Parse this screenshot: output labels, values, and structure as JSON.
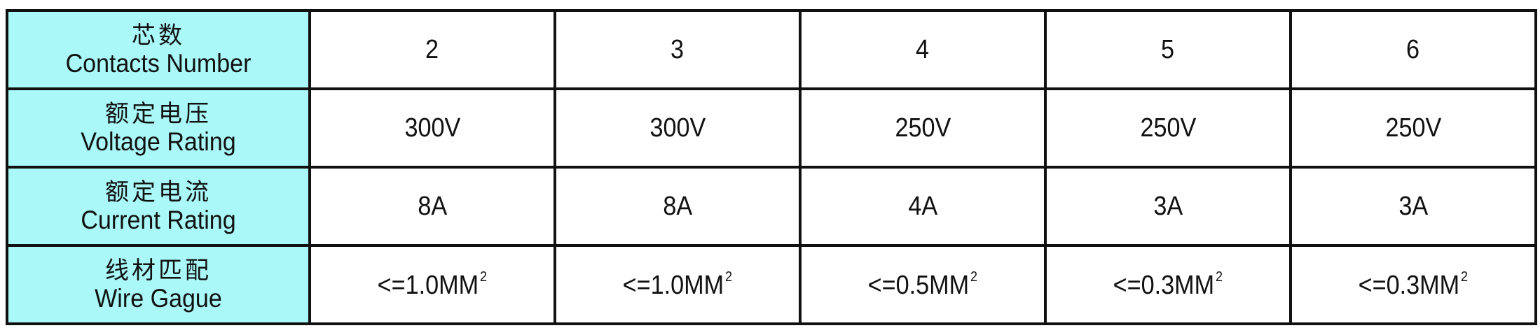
{
  "table": {
    "header_color": "#aaf8f8",
    "rows": [
      {
        "label_zh": "芯数",
        "label_en": "Contacts Number",
        "values": [
          "2",
          "3",
          "4",
          "5",
          "6"
        ]
      },
      {
        "label_zh": "额定电压",
        "label_en": "Voltage Rating",
        "values": [
          "300V",
          "300V",
          "250V",
          "250V",
          "250V"
        ]
      },
      {
        "label_zh": "额定电流",
        "label_en": "Current Rating",
        "values": [
          "8A",
          "8A",
          "4A",
          "3A",
          "3A"
        ]
      },
      {
        "label_zh": "线材匹配",
        "label_en": "Wire Gague",
        "values": [
          "<=1.0MM",
          "<=1.0MM",
          "<=0.5MM",
          "<=0.3MM",
          "<=0.3MM"
        ],
        "unit_superscript": "2"
      }
    ]
  }
}
